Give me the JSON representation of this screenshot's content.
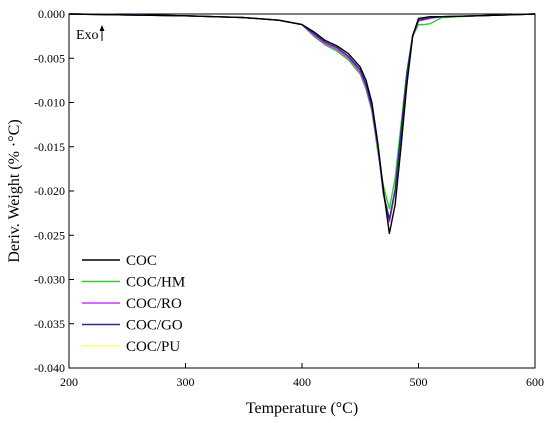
{
  "chart_data": {
    "type": "line",
    "xlabel": "Temperature (°C)",
    "ylabel": "Deriv. Weight (% ·°C)",
    "xlim": [
      200,
      600
    ],
    "ylim": [
      -0.04,
      0.0
    ],
    "xticks": [
      "200",
      "300",
      "400",
      "500",
      "600"
    ],
    "yticks": [
      "0.000",
      "-0.005",
      "-0.010",
      "-0.015",
      "-0.020",
      "-0.025",
      "-0.030",
      "-0.035",
      "-0.040"
    ],
    "annotation": "Exo",
    "legend_position": "bottom-left",
    "series": [
      {
        "name": "COC",
        "color": "#000000",
        "points": [
          [
            200,
            0.0
          ],
          [
            250,
            -0.0001
          ],
          [
            300,
            -0.0002
          ],
          [
            350,
            -0.0004
          ],
          [
            380,
            -0.0007
          ],
          [
            400,
            -0.0012
          ],
          [
            410,
            -0.002
          ],
          [
            420,
            -0.003
          ],
          [
            430,
            -0.0036
          ],
          [
            440,
            -0.0045
          ],
          [
            450,
            -0.006
          ],
          [
            455,
            -0.0075
          ],
          [
            460,
            -0.01
          ],
          [
            465,
            -0.0145
          ],
          [
            470,
            -0.02
          ],
          [
            475,
            -0.0248
          ],
          [
            480,
            -0.0215
          ],
          [
            485,
            -0.015
          ],
          [
            490,
            -0.008
          ],
          [
            495,
            -0.0025
          ],
          [
            500,
            -0.0005
          ],
          [
            510,
            -0.0003
          ],
          [
            520,
            -0.0003
          ],
          [
            550,
            -0.0002
          ],
          [
            600,
            0.0
          ]
        ]
      },
      {
        "name": "COC/HM",
        "color": "#33cc33",
        "points": [
          [
            200,
            0.0
          ],
          [
            250,
            -0.0001
          ],
          [
            300,
            -0.0002
          ],
          [
            350,
            -0.0004
          ],
          [
            380,
            -0.0007
          ],
          [
            400,
            -0.0012
          ],
          [
            410,
            -0.0025
          ],
          [
            420,
            -0.0035
          ],
          [
            430,
            -0.0042
          ],
          [
            440,
            -0.0052
          ],
          [
            450,
            -0.0068
          ],
          [
            455,
            -0.0085
          ],
          [
            460,
            -0.011
          ],
          [
            465,
            -0.0155
          ],
          [
            470,
            -0.0195
          ],
          [
            475,
            -0.022
          ],
          [
            480,
            -0.0185
          ],
          [
            485,
            -0.0125
          ],
          [
            490,
            -0.0065
          ],
          [
            495,
            -0.0025
          ],
          [
            500,
            -0.0012
          ],
          [
            505,
            -0.0012
          ],
          [
            510,
            -0.0011
          ],
          [
            520,
            -0.0004
          ],
          [
            550,
            -0.0002
          ],
          [
            600,
            0.0
          ]
        ]
      },
      {
        "name": "COC/RO",
        "color": "#cc33ff",
        "points": [
          [
            200,
            0.0
          ],
          [
            250,
            -0.0001
          ],
          [
            300,
            -0.0002
          ],
          [
            350,
            -0.0004
          ],
          [
            380,
            -0.0007
          ],
          [
            400,
            -0.0012
          ],
          [
            410,
            -0.0024
          ],
          [
            420,
            -0.0034
          ],
          [
            430,
            -0.004
          ],
          [
            440,
            -0.005
          ],
          [
            450,
            -0.0066
          ],
          [
            455,
            -0.0083
          ],
          [
            460,
            -0.0108
          ],
          [
            465,
            -0.015
          ],
          [
            470,
            -0.0205
          ],
          [
            475,
            -0.0235
          ],
          [
            480,
            -0.02
          ],
          [
            485,
            -0.0135
          ],
          [
            490,
            -0.007
          ],
          [
            495,
            -0.0025
          ],
          [
            500,
            -0.0008
          ],
          [
            510,
            -0.0005
          ],
          [
            520,
            -0.0003
          ],
          [
            550,
            -0.0002
          ],
          [
            600,
            0.0
          ]
        ]
      },
      {
        "name": "COC/GO",
        "color": "#2a2a8c",
        "points": [
          [
            200,
            0.0
          ],
          [
            250,
            -0.0001
          ],
          [
            300,
            -0.0002
          ],
          [
            350,
            -0.0004
          ],
          [
            380,
            -0.0007
          ],
          [
            400,
            -0.0012
          ],
          [
            410,
            -0.0022
          ],
          [
            420,
            -0.0032
          ],
          [
            430,
            -0.0038
          ],
          [
            440,
            -0.0048
          ],
          [
            450,
            -0.0063
          ],
          [
            455,
            -0.008
          ],
          [
            460,
            -0.0105
          ],
          [
            465,
            -0.0148
          ],
          [
            470,
            -0.0203
          ],
          [
            475,
            -0.0232
          ],
          [
            480,
            -0.0198
          ],
          [
            485,
            -0.0133
          ],
          [
            490,
            -0.0068
          ],
          [
            495,
            -0.0024
          ],
          [
            500,
            -0.0007
          ],
          [
            510,
            -0.0004
          ],
          [
            520,
            -0.0003
          ],
          [
            550,
            -0.0002
          ],
          [
            600,
            0.0
          ]
        ]
      },
      {
        "name": "COC/PU",
        "color": "#ffff66",
        "points": [
          [
            200,
            0.0
          ],
          [
            250,
            -0.0001
          ],
          [
            300,
            -0.0002
          ],
          [
            350,
            -0.0004
          ],
          [
            380,
            -0.0007
          ],
          [
            400,
            -0.0012
          ],
          [
            410,
            -0.0023
          ],
          [
            420,
            -0.0033
          ],
          [
            430,
            -0.0039
          ],
          [
            440,
            -0.0049
          ],
          [
            450,
            -0.0065
          ],
          [
            455,
            -0.0082
          ],
          [
            460,
            -0.0107
          ],
          [
            465,
            -0.0149
          ],
          [
            470,
            -0.0204
          ],
          [
            475,
            -0.0233
          ],
          [
            480,
            -0.0199
          ],
          [
            485,
            -0.0134
          ],
          [
            490,
            -0.0069
          ],
          [
            495,
            -0.0024
          ],
          [
            500,
            -0.0007
          ],
          [
            510,
            -0.0004
          ],
          [
            520,
            -0.0003
          ],
          [
            550,
            -0.0002
          ],
          [
            600,
            0.0
          ]
        ]
      }
    ]
  }
}
